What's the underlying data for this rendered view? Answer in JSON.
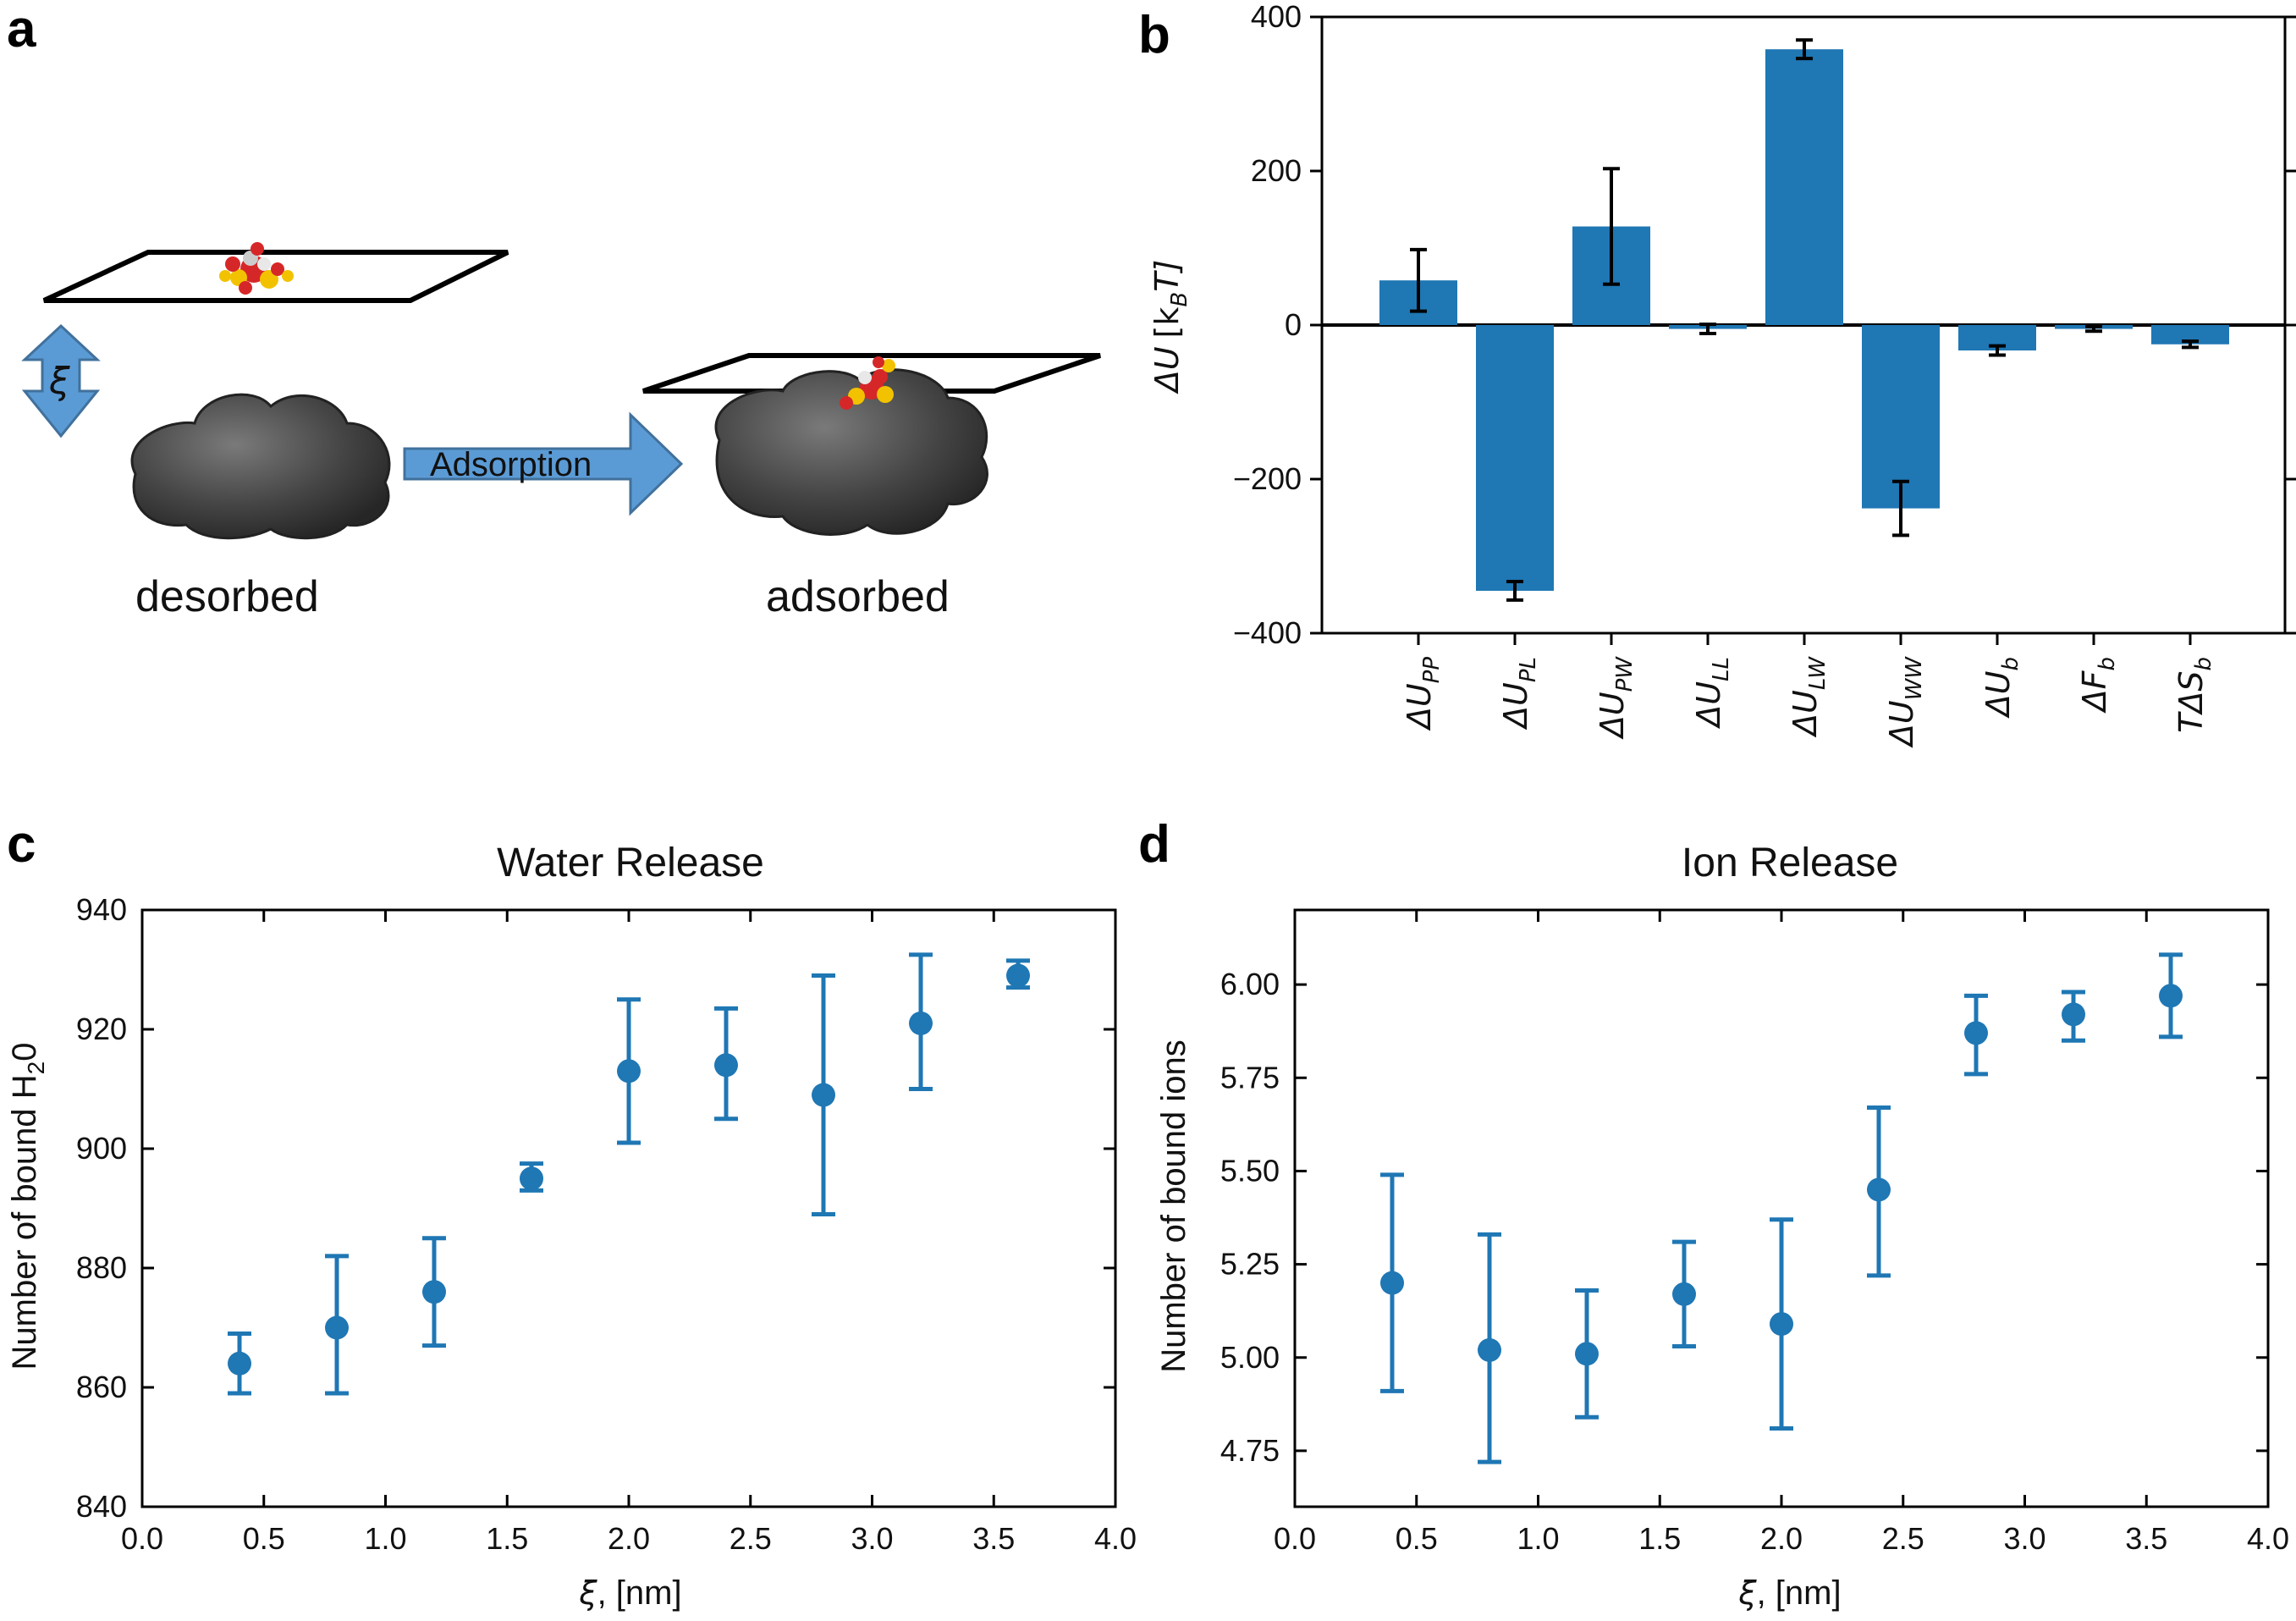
{
  "panel_labels": {
    "a": "a",
    "b": "b",
    "c": "c",
    "d": "d"
  },
  "panel_a": {
    "xi_symbol": "ξ",
    "arrow_label": "Adsorption",
    "left_caption": "desorbed",
    "right_caption": "adsorbed",
    "colors": {
      "arrow_fill": "#5b9bd5",
      "arrow_stroke": "#41719c",
      "protein": "#4a4a4a"
    }
  },
  "chart_data": [
    {
      "id": "b",
      "type": "bar",
      "title": "",
      "ylabel_var": "ΔU",
      "ylabel_unit": "[k",
      "ylabel_sub": "B",
      "ylabel_end": "T]",
      "ylim": [
        -400,
        400
      ],
      "yticks": [
        -400,
        -200,
        0,
        200,
        400
      ],
      "categories": [
        {
          "base": "ΔU",
          "sub": "PP"
        },
        {
          "base": "ΔU",
          "sub": "PL"
        },
        {
          "base": "ΔU",
          "sub": "PW"
        },
        {
          "base": "ΔU",
          "sub": "LL"
        },
        {
          "base": "ΔU",
          "sub": "LW"
        },
        {
          "base": "ΔU",
          "sub": "WW"
        },
        {
          "base": "ΔU",
          "sub": "b"
        },
        {
          "base": "ΔF",
          "sub": "b"
        },
        {
          "base": "TΔS",
          "sub": "b"
        }
      ],
      "values": [
        58,
        -345,
        128,
        -5,
        358,
        -238,
        -33,
        -5,
        -25
      ],
      "errors": [
        40,
        12,
        75,
        6,
        12,
        35,
        6,
        3,
        4
      ],
      "color": "#1f77b4"
    },
    {
      "id": "c",
      "type": "scatter",
      "title": "Water Release",
      "xlabel_var": "ξ",
      "xlabel_unit": ", [nm]",
      "ylabel_pre": "Number of bound H",
      "ylabel_sub": "2",
      "ylabel_post": "0",
      "xlim": [
        0.0,
        4.0
      ],
      "ylim": [
        840,
        940
      ],
      "xticks": [
        "0.0",
        "0.5",
        "1.0",
        "1.5",
        "2.0",
        "2.5",
        "3.0",
        "3.5",
        "4.0"
      ],
      "yticks": [
        "840",
        "860",
        "880",
        "900",
        "920",
        "940"
      ],
      "x": [
        0.4,
        0.8,
        1.2,
        1.6,
        2.0,
        2.4,
        2.8,
        3.2,
        3.6
      ],
      "y": [
        864,
        870,
        876,
        895,
        913,
        914,
        909,
        921,
        929
      ],
      "err_low": [
        5,
        11,
        9,
        2,
        12,
        9,
        20,
        11,
        2
      ],
      "err_high": [
        5,
        12,
        9,
        2.5,
        12,
        9.5,
        20,
        11.5,
        2.5
      ],
      "color": "#1f77b4"
    },
    {
      "id": "d",
      "type": "scatter",
      "title": "Ion Release",
      "xlabel_var": "ξ",
      "xlabel_unit": ", [nm]",
      "ylabel": "Number of bound ions",
      "xlim": [
        0.0,
        4.0
      ],
      "ylim": [
        4.6,
        6.2
      ],
      "xticks": [
        "0.0",
        "0.5",
        "1.0",
        "1.5",
        "2.0",
        "2.5",
        "3.0",
        "3.5",
        "4.0"
      ],
      "yticks": [
        "4.75",
        "5.00",
        "5.25",
        "5.50",
        "5.75",
        "6.00"
      ],
      "x": [
        0.4,
        0.8,
        1.2,
        1.6,
        2.0,
        2.4,
        2.8,
        3.2,
        3.6
      ],
      "y": [
        5.2,
        5.02,
        5.01,
        5.17,
        5.09,
        5.45,
        5.87,
        5.92,
        5.97
      ],
      "err_low": [
        0.29,
        0.3,
        0.17,
        0.14,
        0.28,
        0.23,
        0.11,
        0.07,
        0.11
      ],
      "err_high": [
        0.29,
        0.31,
        0.17,
        0.14,
        0.28,
        0.22,
        0.1,
        0.06,
        0.11
      ],
      "color": "#1f77b4"
    }
  ]
}
